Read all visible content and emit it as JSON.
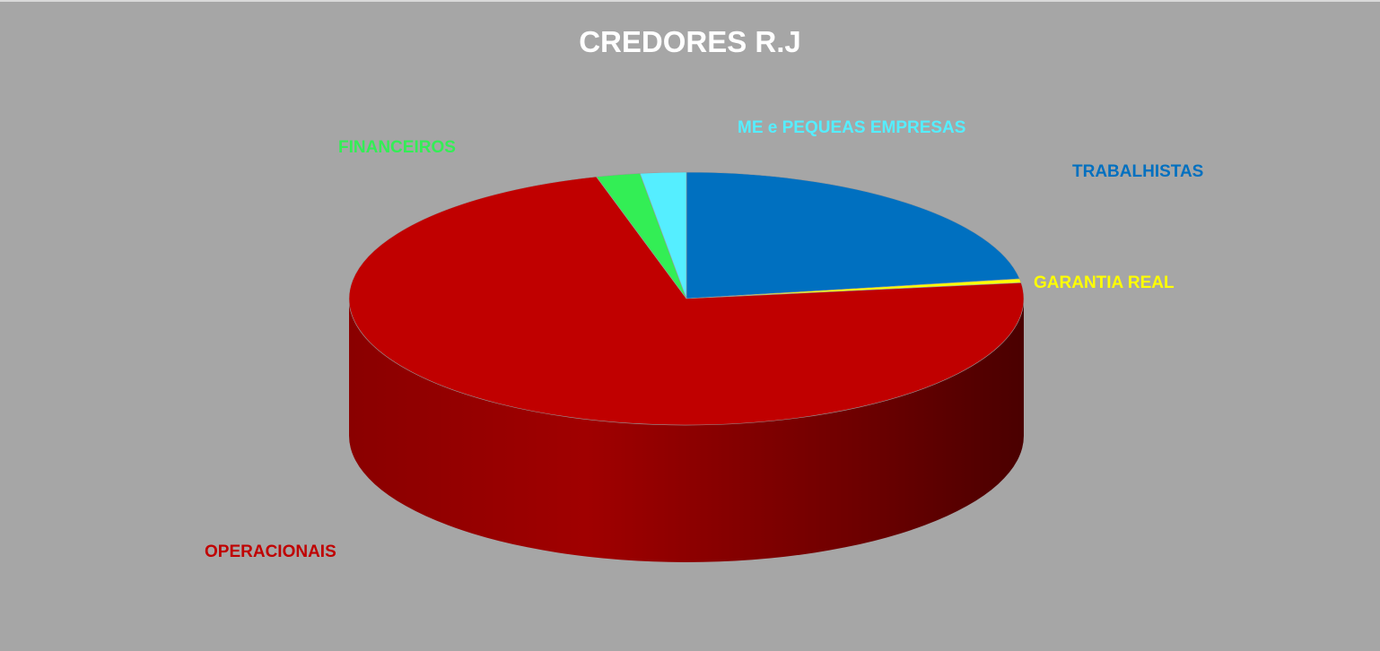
{
  "chart_data": {
    "type": "pie",
    "title": "CREDORES R.J",
    "slices": [
      {
        "label": "TRABALHISTAS",
        "value": 22.5,
        "color": "#0070c0"
      },
      {
        "label": "GARANTIA REAL",
        "value": 0.5,
        "color": "#ffff00"
      },
      {
        "label": "OPERACIONAIS",
        "value": 72.7,
        "color": "#c00000"
      },
      {
        "label": "FINANCEIROS",
        "value": 2.1,
        "color": "#33ee55"
      },
      {
        "label": "ME e PEQUEAS EMPRESAS",
        "value": 2.2,
        "color": "#55eeff"
      }
    ],
    "background": "#a6a6a6"
  }
}
